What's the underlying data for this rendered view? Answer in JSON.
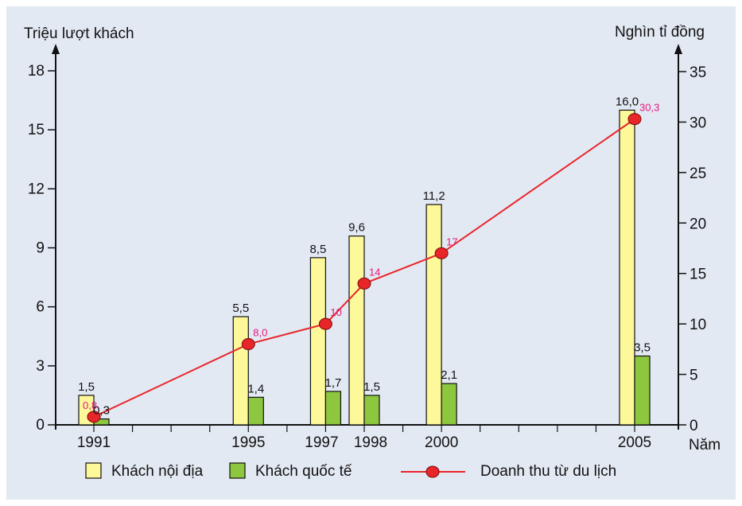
{
  "chart_data": {
    "type": "bar",
    "title": "",
    "left_axis": {
      "label": "Triệu lượt khách",
      "ticks": [
        "0",
        "3",
        "6",
        "9",
        "12",
        "15",
        "18"
      ],
      "range": [
        0,
        18
      ]
    },
    "right_axis": {
      "label": "Nghìn tỉ đồng",
      "ticks": [
        "0",
        "5",
        "10",
        "15",
        "20",
        "25",
        "30",
        "35"
      ],
      "range": [
        0,
        35
      ]
    },
    "x_axis_label": "Năm",
    "years": [
      1991,
      1995,
      1997,
      1998,
      2000,
      2005
    ],
    "year_labels": [
      "1991",
      "1995",
      "1997",
      "1998",
      "2000",
      "2005"
    ],
    "series": [
      {
        "name": "Khách nội địa",
        "kind": "bar",
        "axis": "left",
        "color": "#fdf89a",
        "values": [
          1.5,
          5.5,
          8.5,
          9.6,
          11.2,
          16.0
        ],
        "labels": [
          "1,5",
          "5,5",
          "8,5",
          "9,6",
          "11,2",
          "16,0"
        ]
      },
      {
        "name": "Khách quốc tế",
        "kind": "bar",
        "axis": "left",
        "color": "#8dc63f",
        "values": [
          0.3,
          1.4,
          1.7,
          1.5,
          2.1,
          3.5
        ],
        "labels": [
          "0,3",
          "1,4",
          "1,7",
          "1,5",
          "2,1",
          "3,5"
        ]
      },
      {
        "name": "Doanh thu từ du lịch",
        "kind": "line",
        "axis": "right",
        "color": "#e8262a",
        "values": [
          0.8,
          8.0,
          10,
          14,
          17,
          30.3
        ],
        "labels": [
          "0,8",
          "8,0",
          "10",
          "14",
          "17",
          "30,3"
        ]
      }
    ],
    "label_colors": {
      "line_values": "#e6177e",
      "text": "#111111"
    },
    "grid": false,
    "legend_position": "bottom"
  }
}
